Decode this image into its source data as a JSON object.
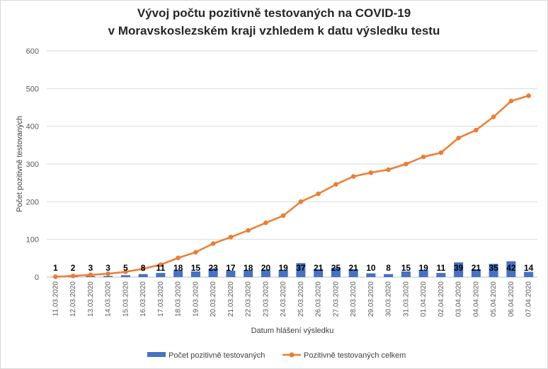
{
  "chart_data": {
    "type": "bar+line",
    "title_line1": "Vývoj počtu pozitivně testovaných na COVID-19",
    "title_line2": "v Moravskoslezském kraji vzhledem k datu výsledku testu",
    "xlabel": "Datum hlášení výsledku",
    "ylabel": "Počet pozitivně testovaných",
    "ylim": [
      0,
      600
    ],
    "yticks": [
      0,
      100,
      200,
      300,
      400,
      500,
      600
    ],
    "grid": true,
    "legend_position": "bottom",
    "categories": [
      "11.03.2020",
      "12.03.2020",
      "13.03.2020",
      "14.03.2020",
      "15.03.2020",
      "16.03.2020",
      "17.03.2020",
      "18.03.2020",
      "19.03.2020",
      "20.03.2020",
      "21.03.2020",
      "22.03.2020",
      "23.03.2020",
      "24.03.2020",
      "25.03.2020",
      "26.03.2020",
      "27.03.2020",
      "28.03.2020",
      "29.03.2020",
      "30.03.2020",
      "31.03.2020",
      "01.04.2020",
      "02.04.2020",
      "03.04.2020",
      "04.04.2020",
      "05.04.2020",
      "06.04.2020",
      "07.04.2020"
    ],
    "series": [
      {
        "name": "Počet pozitivně testovaných",
        "type": "bar",
        "color": "#4472c4",
        "values": [
          1,
          2,
          3,
          3,
          5,
          8,
          11,
          18,
          15,
          23,
          17,
          18,
          20,
          19,
          37,
          21,
          25,
          21,
          10,
          8,
          15,
          19,
          11,
          39,
          21,
          35,
          42,
          14
        ]
      },
      {
        "name": "Pozitivně testovaných celkem",
        "type": "line",
        "color": "#ed7d31",
        "values": [
          1,
          3,
          6,
          9,
          14,
          22,
          33,
          51,
          66,
          89,
          106,
          124,
          144,
          163,
          200,
          221,
          246,
          267,
          277,
          285,
          300,
          319,
          330,
          369,
          390,
          425,
          467,
          481
        ]
      }
    ]
  }
}
